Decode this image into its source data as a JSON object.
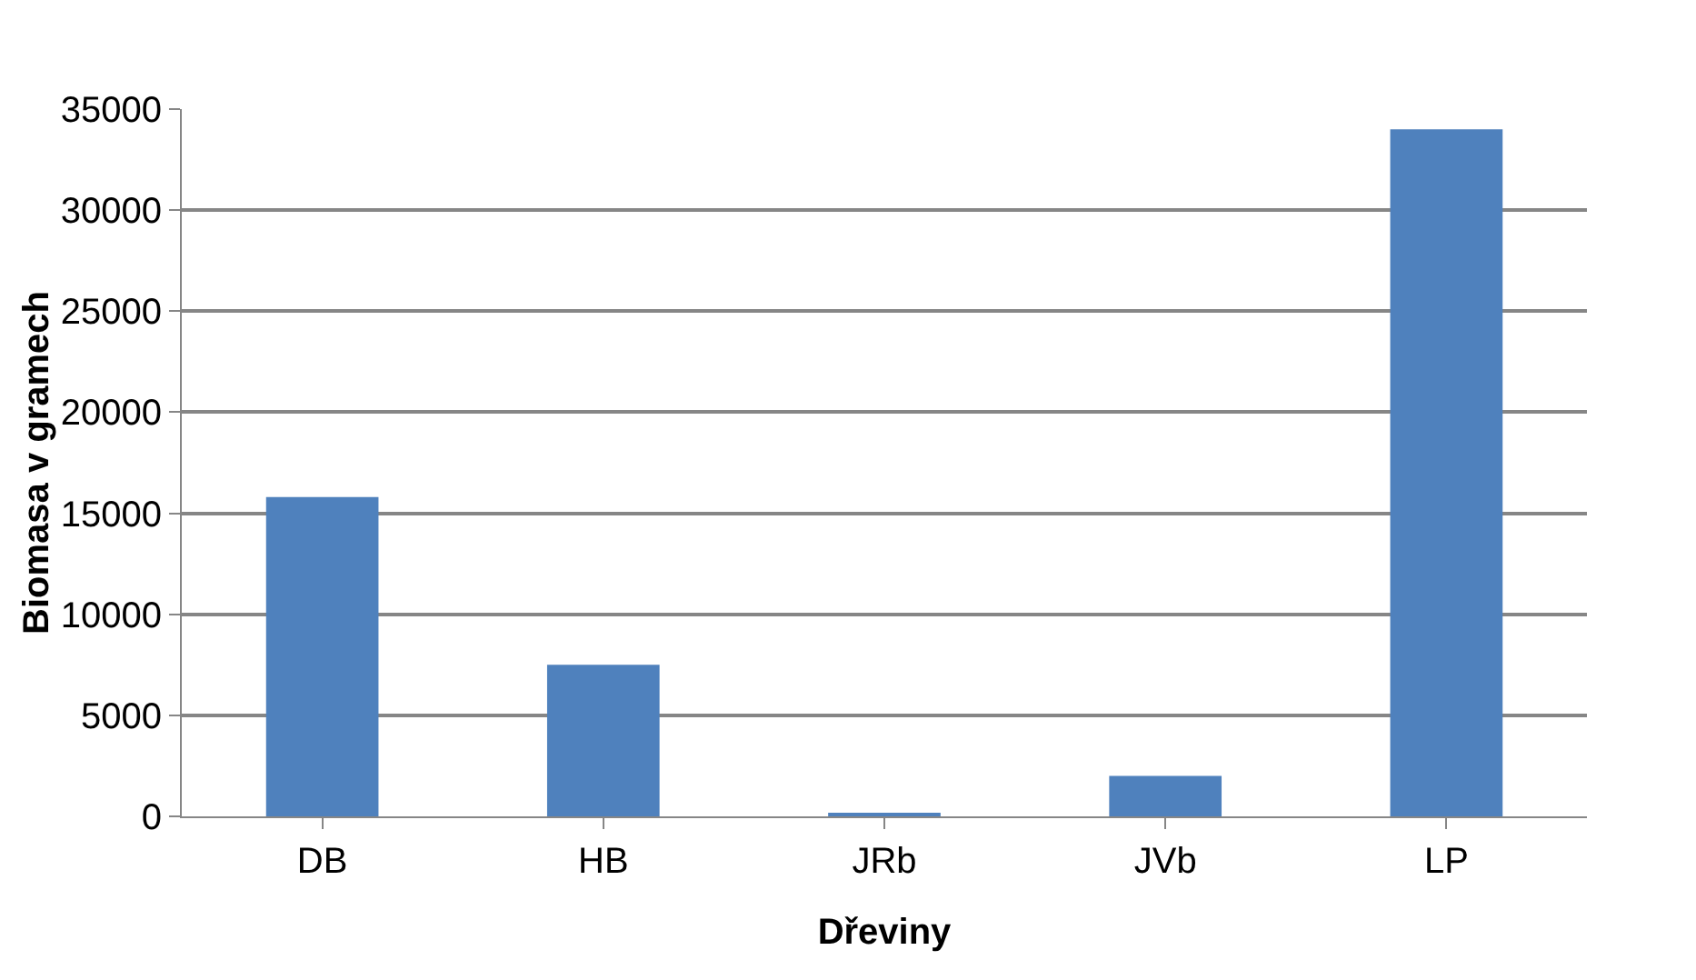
{
  "chart_data": {
    "type": "bar",
    "xlabel": "Dřeviny",
    "ylabel": "Biomasa v gramech",
    "categories": [
      "DB",
      "HB",
      "JRb",
      "JVb",
      "LP"
    ],
    "values": [
      15800,
      7500,
      100,
      2000,
      34000
    ],
    "color": "#4f81bd",
    "ylim": [
      0,
      35000
    ],
    "yticks": [
      0,
      5000,
      10000,
      15000,
      20000,
      25000,
      30000,
      35000
    ],
    "grid": "y"
  }
}
